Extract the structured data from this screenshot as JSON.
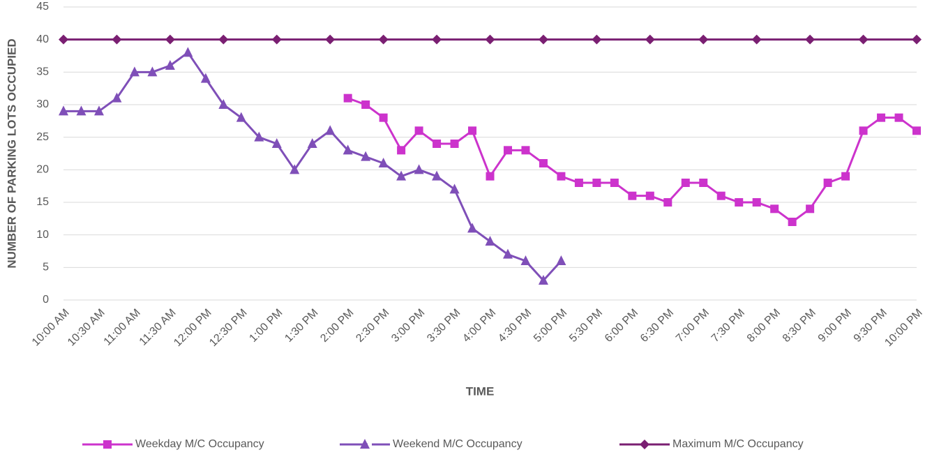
{
  "chart_data": {
    "type": "line",
    "x_label": "TIME",
    "y_label": "NUMBER OF PARKING LOTS OCCUPIED",
    "categories": [
      "10:00 AM",
      null,
      "10:30 AM",
      null,
      "11:00 AM",
      null,
      "11:30 AM",
      null,
      "12:00 PM",
      null,
      "12:30 PM",
      null,
      "1:00 PM",
      null,
      "1:30 PM",
      null,
      "2:00 PM",
      null,
      "2:30 PM",
      null,
      "3:00 PM",
      null,
      "3:30 PM",
      null,
      "4:00 PM",
      null,
      "4:30 PM",
      null,
      "5:00 PM",
      null,
      "5:30 PM",
      null,
      "6:00 PM",
      null,
      "6:30 PM",
      null,
      "7:00 PM",
      null,
      "7:30 PM",
      null,
      "8:00 PM",
      null,
      "8:30 PM",
      null,
      "9:00 PM",
      null,
      "9:30 PM",
      null,
      "10:00 PM"
    ],
    "series": [
      {
        "name": "Weekday M/C Occupancy",
        "color": "#cc33cc",
        "marker": "square",
        "values": [
          null,
          null,
          null,
          null,
          null,
          null,
          null,
          null,
          null,
          null,
          null,
          null,
          null,
          null,
          null,
          null,
          31,
          30,
          28,
          23,
          26,
          24,
          24,
          26,
          19,
          23,
          23,
          21,
          19,
          18,
          18,
          18,
          16,
          16,
          15,
          18,
          18,
          16,
          15,
          15,
          14,
          12,
          14,
          18,
          19,
          26,
          28,
          28,
          26
        ]
      },
      {
        "name": "Weekend M/C Occupancy",
        "color": "#7f4fb8",
        "marker": "triangle",
        "values": [
          29,
          29,
          29,
          31,
          35,
          35,
          36,
          38,
          34,
          30,
          28,
          25,
          24,
          20,
          24,
          26,
          23,
          22,
          21,
          19,
          20,
          19,
          17,
          11,
          9,
          7,
          6,
          3,
          6,
          null,
          null,
          null,
          null,
          null,
          null,
          null,
          null,
          null,
          null,
          null,
          null,
          null,
          null,
          null,
          null,
          null,
          null,
          null,
          null
        ]
      },
      {
        "name": "Maximum M/C Occupancy",
        "color": "#7a1f72",
        "marker": "diamond",
        "marker_every": 3,
        "values": [
          40,
          40,
          40,
          40,
          40,
          40,
          40,
          40,
          40,
          40,
          40,
          40,
          40,
          40,
          40,
          40,
          40,
          40,
          40,
          40,
          40,
          40,
          40,
          40,
          40,
          40,
          40,
          40,
          40,
          40,
          40,
          40,
          40,
          40,
          40,
          40,
          40,
          40,
          40,
          40,
          40,
          40,
          40,
          40,
          40,
          40,
          40,
          40,
          40
        ]
      }
    ],
    "ylim": [
      0,
      45
    ],
    "yticks": [
      0,
      5,
      10,
      15,
      20,
      25,
      30,
      35,
      40,
      45
    ],
    "grid": true,
    "legend": "bottom"
  }
}
